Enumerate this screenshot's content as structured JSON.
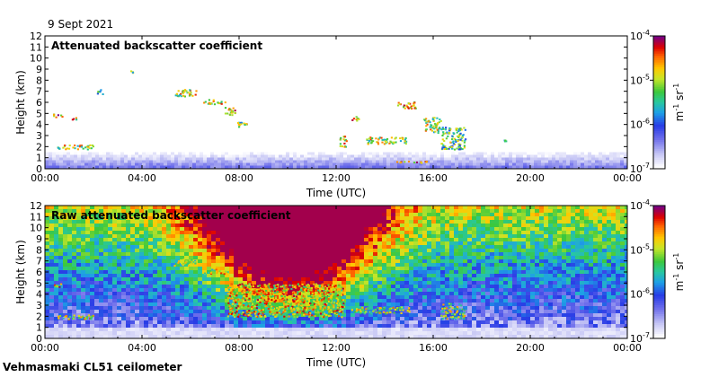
{
  "date_label": "9 Sept 2021",
  "footer_label": "Vehmasmaki CL51 ceilometer",
  "chart_data": [
    {
      "type": "heatmap",
      "title": "Attenuated backscatter coefficient",
      "xlabel": "Time (UTC)",
      "ylabel": "Height (km)",
      "xlim": [
        0,
        24
      ],
      "ylim": [
        0,
        12
      ],
      "x_ticks": [
        "00:00",
        "04:00",
        "08:00",
        "12:00",
        "16:00",
        "20:00",
        "00:00"
      ],
      "y_ticks": [
        "0",
        "1",
        "2",
        "3",
        "4",
        "5",
        "6",
        "7",
        "8",
        "9",
        "10",
        "11",
        "12"
      ],
      "colorbar": {
        "labels": [
          "10-4",
          "10-5",
          "10-6",
          "10-7"
        ],
        "exponents": [
          -4,
          -5,
          -6,
          -7
        ],
        "unit": "m-1 sr-1",
        "scale": "log"
      },
      "features": [
        {
          "name": "surface layer",
          "t_start": 0,
          "t_end": 24,
          "h_bottom": 0,
          "h_top": 1.4,
          "level": -6.6
        },
        {
          "name": "cloud",
          "t_start": 0.3,
          "t_end": 0.7,
          "h_bottom": 4.7,
          "h_top": 5.0,
          "level": -4.5
        },
        {
          "name": "cloud",
          "t_start": 1.1,
          "t_end": 1.3,
          "h_bottom": 4.4,
          "h_top": 4.7,
          "level": -4.8
        },
        {
          "name": "cloud",
          "t_start": 0.5,
          "t_end": 2.0,
          "h_bottom": 1.8,
          "h_top": 2.2,
          "level": -5.0
        },
        {
          "name": "cloud",
          "t_start": 2.1,
          "t_end": 2.4,
          "h_bottom": 6.8,
          "h_top": 7.2,
          "level": -5.3
        },
        {
          "name": "cloud",
          "t_start": 3.5,
          "t_end": 3.6,
          "h_bottom": 8.6,
          "h_top": 8.9,
          "level": -5.3
        },
        {
          "name": "cloud",
          "t_start": 5.3,
          "t_end": 6.2,
          "h_bottom": 6.6,
          "h_top": 7.2,
          "level": -5.0
        },
        {
          "name": "cloud",
          "t_start": 6.5,
          "t_end": 7.4,
          "h_bottom": 5.9,
          "h_top": 6.3,
          "level": -5.0
        },
        {
          "name": "cloud",
          "t_start": 7.4,
          "t_end": 7.9,
          "h_bottom": 4.9,
          "h_top": 5.6,
          "level": -4.8
        },
        {
          "name": "cloud",
          "t_start": 7.9,
          "t_end": 8.3,
          "h_bottom": 3.7,
          "h_top": 4.3,
          "level": -5.2
        },
        {
          "name": "cloud",
          "t_start": 12.1,
          "t_end": 12.4,
          "h_bottom": 2.0,
          "h_top": 3.0,
          "level": -4.8
        },
        {
          "name": "cloud",
          "t_start": 12.6,
          "t_end": 12.9,
          "h_bottom": 4.4,
          "h_top": 4.8,
          "level": -4.8
        },
        {
          "name": "cloud",
          "t_start": 13.2,
          "t_end": 14.9,
          "h_bottom": 2.3,
          "h_top": 2.9,
          "level": -5.0
        },
        {
          "name": "cloud",
          "t_start": 14.5,
          "t_end": 15.3,
          "h_bottom": 5.5,
          "h_top": 6.1,
          "level": -4.8
        },
        {
          "name": "cloud",
          "t_start": 15.6,
          "t_end": 16.3,
          "h_bottom": 3.3,
          "h_top": 4.7,
          "level": -5.1
        },
        {
          "name": "cloud",
          "t_start": 16.3,
          "t_end": 17.3,
          "h_bottom": 1.8,
          "h_top": 3.8,
          "level": -5.4
        },
        {
          "name": "cloud",
          "t_start": 18.9,
          "t_end": 19.0,
          "h_bottom": 2.5,
          "h_top": 2.8,
          "level": -5.8
        },
        {
          "name": "surface strip",
          "t_start": 14.3,
          "t_end": 15.7,
          "h_bottom": 0.6,
          "h_top": 0.75,
          "level": -4.6
        }
      ]
    },
    {
      "type": "heatmap",
      "title": "Raw attenuated backscatter coefficient",
      "xlabel": "Time (UTC)",
      "ylabel": "Height (km)",
      "xlim": [
        0,
        24
      ],
      "ylim": [
        0,
        12
      ],
      "x_ticks": [
        "00:00",
        "04:00",
        "08:00",
        "12:00",
        "16:00",
        "20:00",
        "00:00"
      ],
      "y_ticks": [
        "0",
        "1",
        "2",
        "3",
        "4",
        "5",
        "6",
        "7",
        "8",
        "9",
        "10",
        "11",
        "12"
      ],
      "colorbar": {
        "labels": [
          "10-4",
          "10-5",
          "10-6",
          "10-7"
        ],
        "exponents": [
          -4,
          -5,
          -6,
          -7
        ],
        "unit": "m-1 sr-1",
        "scale": "log"
      },
      "background_noise": "increasing with height, strongest 08:00-13:00 (red/yellow above 7 km), blue in night hours",
      "features": [
        {
          "name": "cloud",
          "t_start": 0.3,
          "t_end": 0.7,
          "h_bottom": 4.7,
          "h_top": 5.0,
          "level": -4.5
        },
        {
          "name": "cloud",
          "t_start": 0.5,
          "t_end": 2.0,
          "h_bottom": 1.8,
          "h_top": 2.2,
          "level": -5.0
        },
        {
          "name": "cloud",
          "t_start": 5.3,
          "t_end": 6.2,
          "h_bottom": 6.6,
          "h_top": 7.2,
          "level": -5.0
        },
        {
          "name": "cloud",
          "t_start": 6.5,
          "t_end": 7.5,
          "h_bottom": 5.9,
          "h_top": 6.3,
          "level": -5.0
        },
        {
          "name": "layer",
          "t_start": 7.5,
          "t_end": 12.3,
          "h_bottom": 2.0,
          "h_top": 5.0,
          "level": -4.8
        },
        {
          "name": "cloud",
          "t_start": 12.6,
          "t_end": 15.0,
          "h_bottom": 2.3,
          "h_top": 2.9,
          "level": -5.0
        },
        {
          "name": "cloud",
          "t_start": 16.3,
          "t_end": 17.3,
          "h_bottom": 1.8,
          "h_top": 3.2,
          "level": -5.2
        }
      ]
    }
  ]
}
